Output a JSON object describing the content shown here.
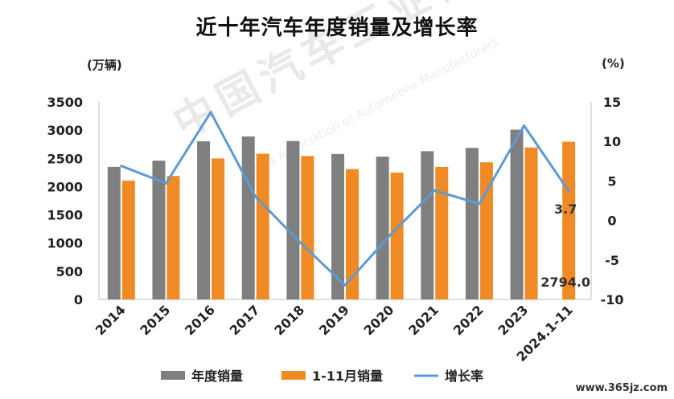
{
  "chart_data": {
    "type": "bar",
    "title": "近十年汽车年度销量及增长率",
    "categories": [
      "2014",
      "2015",
      "2016",
      "2017",
      "2018",
      "2019",
      "2020",
      "2021",
      "2022",
      "2023",
      "2024.1-11"
    ],
    "series": [
      {
        "name": "年度销量",
        "kind": "bar",
        "axis": "left",
        "color": "#7f7f7f",
        "values": [
          2349,
          2460,
          2803,
          2888,
          2808,
          2577,
          2531,
          2627,
          2686,
          3009,
          null
        ]
      },
      {
        "name": "1-11月销量",
        "kind": "bar",
        "axis": "left",
        "color": "#f08a24",
        "values": [
          2107,
          2188,
          2499,
          2582,
          2542,
          2311,
          2247,
          2349,
          2431,
          2693,
          2794
        ]
      },
      {
        "name": "增长率",
        "kind": "line",
        "axis": "right",
        "color": "#5b9bd5",
        "values": [
          6.9,
          4.7,
          13.7,
          3.0,
          -2.8,
          -8.2,
          -1.9,
          3.8,
          2.1,
          12.0,
          3.7
        ]
      }
    ],
    "ylabel_left": "(万辆)",
    "ylabel_right": "(%)",
    "ylim_left": [
      0,
      3500
    ],
    "yticks_left": [
      0,
      500,
      1000,
      1500,
      2000,
      2500,
      3000,
      3500
    ],
    "ylim_right": [
      -10,
      15
    ],
    "yticks_right": [
      -10,
      -5,
      0,
      5,
      10,
      15
    ],
    "annotations": [
      {
        "text": "3.7",
        "series": "增长率",
        "category": "2024.1-11"
      },
      {
        "text": "2794.0",
        "series": "1-11月销量",
        "category": "2024.1-11"
      }
    ],
    "legend_position": "bottom",
    "grid": false
  },
  "watermark": {
    "text": "中国汽车工业协会",
    "subtext": "China Association of Automobile Manufacturers"
  },
  "footer": "www.365jz.com"
}
